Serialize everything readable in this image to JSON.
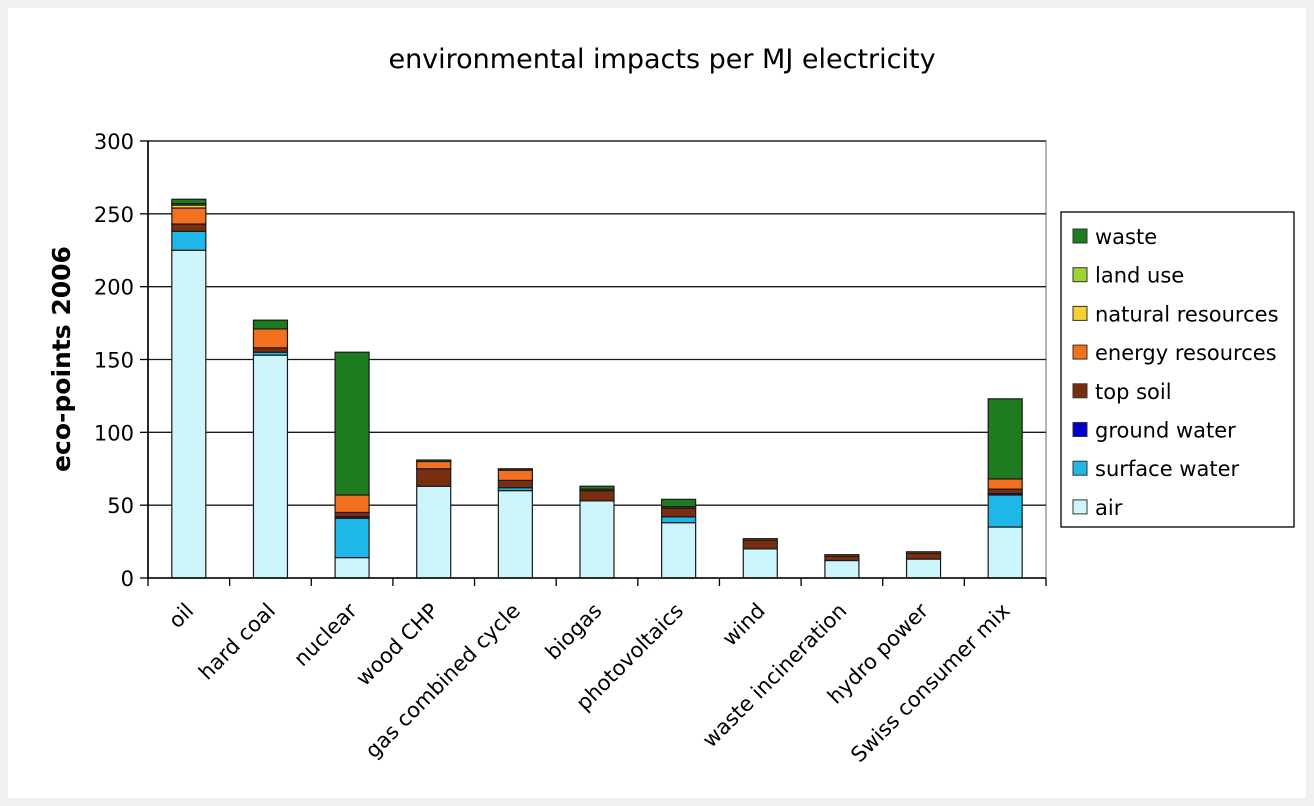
{
  "chart_data": {
    "type": "bar",
    "stacked": true,
    "title": "environmental impacts per MJ electricity",
    "ylabel": "eco-points 2006",
    "xlabel": "",
    "ylim": [
      0,
      300
    ],
    "yticks": [
      0,
      50,
      100,
      150,
      200,
      250,
      300
    ],
    "grid": true,
    "legend_position": "right",
    "categories": [
      "oil",
      "hard coal",
      "nuclear",
      "wood CHP",
      "gas combined cycle",
      "biogas",
      "photovoltaics",
      "wind",
      "waste incineration",
      "hydro power",
      "Swiss consumer mix"
    ],
    "series": [
      {
        "name": "air",
        "color": "#ccf6fb",
        "values": [
          225,
          153,
          14,
          63,
          60,
          53,
          38,
          20,
          12,
          13,
          35
        ]
      },
      {
        "name": "surface water",
        "color": "#1eb7e7",
        "values": [
          13,
          2,
          27,
          0,
          2,
          0,
          4,
          0,
          0,
          0,
          22
        ]
      },
      {
        "name": "ground water",
        "color": "#0000cc",
        "values": [
          0,
          0,
          1,
          0,
          0,
          0,
          0,
          0,
          0,
          0,
          1
        ]
      },
      {
        "name": "top soil",
        "color": "#7a2e10",
        "values": [
          5,
          3,
          3,
          12,
          5,
          7,
          6,
          6,
          3,
          4,
          3
        ]
      },
      {
        "name": "energy resources",
        "color": "#f2701e",
        "values": [
          11,
          13,
          12,
          5,
          7,
          1,
          1,
          1,
          1,
          1,
          7
        ]
      },
      {
        "name": "natural resources",
        "color": "#f4d131",
        "values": [
          2,
          0,
          0,
          0,
          0,
          0,
          0,
          0,
          0,
          0,
          0
        ]
      },
      {
        "name": "land use",
        "color": "#9fd32f",
        "values": [
          1,
          0,
          0,
          0,
          0,
          0,
          0,
          0,
          0,
          0,
          0
        ]
      },
      {
        "name": "waste",
        "color": "#1c7c1f",
        "values": [
          3,
          6,
          98,
          1,
          1,
          2,
          5,
          0,
          0,
          0,
          55
        ]
      }
    ],
    "legend_order": [
      "waste",
      "land use",
      "natural resources",
      "energy resources",
      "top soil",
      "ground water",
      "surface water",
      "air"
    ]
  }
}
